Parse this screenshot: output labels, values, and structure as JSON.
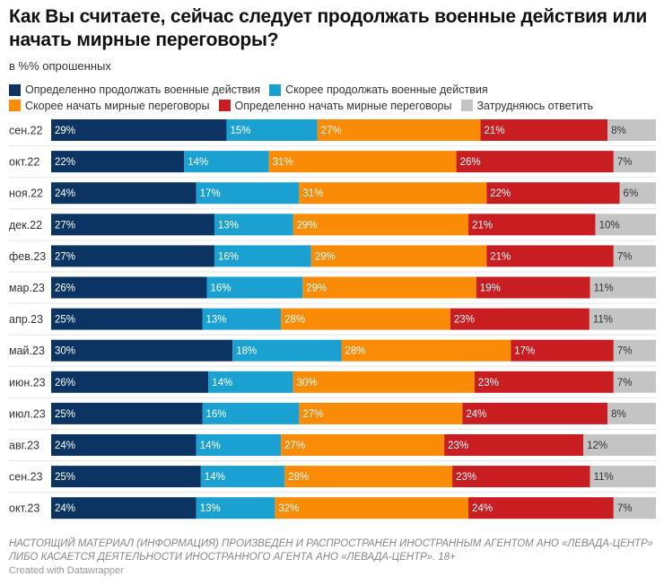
{
  "title": "Как Вы считаете, сейчас следует продолжать военные действия или начать мирные переговоры?",
  "subtitle": "в %% опрошенных",
  "footer": {
    "disclaimer_line1": "НАСТОЯЩИЙ МАТЕРИАЛ (ИНФОРМАЦИЯ) ПРОИЗВЕДЕН И РАСПРОСТРАНЕН ИНОСТРАННЫМ АГЕНТОМ АНО «ЛЕВАДА-ЦЕНТР»",
    "disclaimer_line2": "ЛИБО КАСАЕТСЯ ДЕЯТЕЛЬНОСТИ ИНОСТРАННОГО АГЕНТА АНО «ЛЕВАДА-ЦЕНТР». 18+",
    "credit": "Created with Datawrapper"
  },
  "chart_data": {
    "type": "bar",
    "orientation": "horizontal",
    "stacked": true,
    "legend_position": "top-left",
    "grid": false,
    "value_suffix": "%",
    "categories": [
      "сен.22",
      "окт.22",
      "ноя.22",
      "дек.22",
      "фев.23",
      "мар.23",
      "апр.23",
      "май.23",
      "июн.23",
      "июл.23",
      "авг.23",
      "сен.23",
      "окт.23"
    ],
    "series": [
      {
        "name": "Определенно продолжать военные действия",
        "color": "#0b3463",
        "label_color": "#ffffff",
        "values": [
          29,
          22,
          24,
          27,
          27,
          26,
          25,
          30,
          26,
          25,
          24,
          25,
          24
        ]
      },
      {
        "name": "Скорее продолжать военные действия",
        "color": "#1aa1d2",
        "label_color": "#ffffff",
        "values": [
          15,
          14,
          17,
          13,
          16,
          16,
          13,
          18,
          14,
          16,
          14,
          14,
          13
        ]
      },
      {
        "name": "Скорее начать мирные переговоры",
        "color": "#f98b07",
        "label_color": "#ffffff",
        "values": [
          27,
          31,
          31,
          29,
          29,
          29,
          28,
          28,
          30,
          27,
          27,
          28,
          32
        ]
      },
      {
        "name": "Определенно начать мирные переговоры",
        "color": "#c81d21",
        "label_color": "#ffffff",
        "values": [
          21,
          26,
          22,
          21,
          21,
          19,
          23,
          17,
          23,
          24,
          23,
          23,
          24
        ]
      },
      {
        "name": "Затрудняюсь ответить",
        "color": "#c4c4c4",
        "label_color": "#333333",
        "values": [
          8,
          7,
          6,
          10,
          7,
          11,
          11,
          7,
          7,
          8,
          12,
          11,
          7
        ]
      }
    ]
  }
}
